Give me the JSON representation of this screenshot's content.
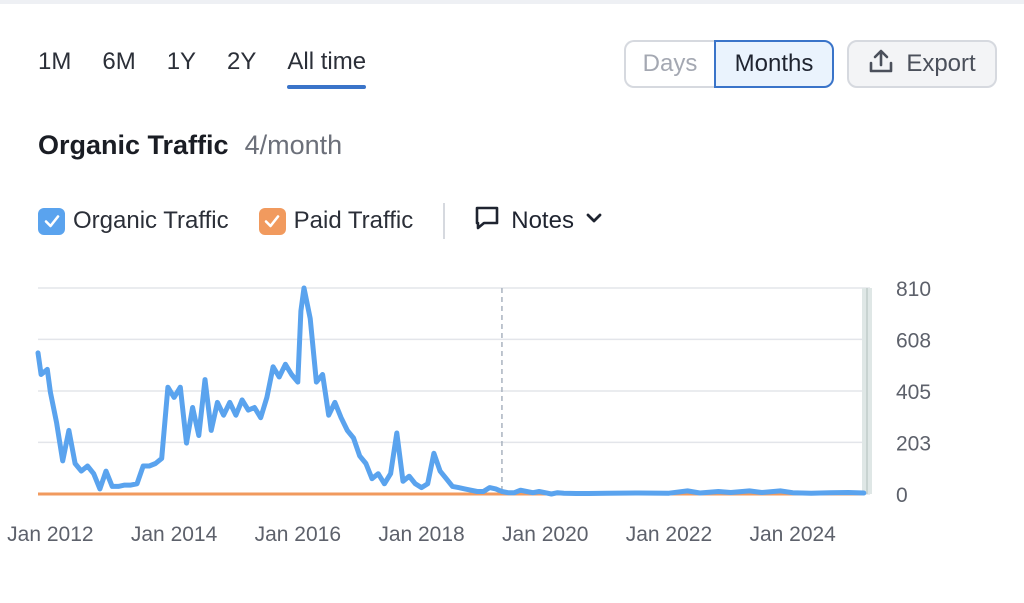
{
  "range_tabs": [
    {
      "label": "1M",
      "active": false
    },
    {
      "label": "6M",
      "active": false
    },
    {
      "label": "1Y",
      "active": false
    },
    {
      "label": "2Y",
      "active": false
    },
    {
      "label": "All time",
      "active": true
    }
  ],
  "granularity": {
    "days_label": "Days",
    "months_label": "Months",
    "selected": "Months"
  },
  "export_label": "Export",
  "title": "Organic Traffic",
  "subtitle": "4/month",
  "legend": [
    {
      "label": "Organic Traffic",
      "color": "#5aa3ee",
      "checked": true
    },
    {
      "label": "Paid Traffic",
      "color": "#f19a5e",
      "checked": true
    }
  ],
  "notes_label": "Notes",
  "icons": {
    "export": "upload-icon",
    "notes": "speech-bubble-icon",
    "dropdown": "chevron-down-icon",
    "check": "check-icon"
  },
  "colors": {
    "accent": "#3a74c9",
    "organic": "#5aa3ee",
    "paid": "#f19a5e"
  },
  "chart_data": {
    "type": "line",
    "xlim": [
      2011.8,
      2025.25
    ],
    "ylim": [
      0,
      810
    ],
    "y_ticks": [
      {
        "value": 0,
        "label": "0"
      },
      {
        "value": 203,
        "label": "203"
      },
      {
        "value": 405,
        "label": "405"
      },
      {
        "value": 608,
        "label": "608"
      },
      {
        "value": 810,
        "label": "810"
      }
    ],
    "x_ticks": [
      {
        "value": 2012,
        "label": "Jan 2012"
      },
      {
        "value": 2014,
        "label": "Jan 2014"
      },
      {
        "value": 2016,
        "label": "Jan 2016"
      },
      {
        "value": 2018,
        "label": "Jan 2018"
      },
      {
        "value": 2020,
        "label": "Jan 2020"
      },
      {
        "value": 2022,
        "label": "Jan 2022"
      },
      {
        "value": 2024,
        "label": "Jan 2024"
      }
    ],
    "marker_x": 2019.3,
    "grid": true,
    "series": [
      {
        "name": "Organic Traffic",
        "color": "#5aa3ee",
        "x": [
          2011.8,
          2011.85,
          2011.95,
          2012.0,
          2012.1,
          2012.2,
          2012.3,
          2012.4,
          2012.5,
          2012.6,
          2012.7,
          2012.8,
          2012.9,
          2013.0,
          2013.1,
          2013.2,
          2013.3,
          2013.4,
          2013.5,
          2013.6,
          2013.7,
          2013.8,
          2013.9,
          2014.0,
          2014.1,
          2014.2,
          2014.3,
          2014.4,
          2014.5,
          2014.6,
          2014.7,
          2014.8,
          2014.9,
          2015.0,
          2015.1,
          2015.2,
          2015.3,
          2015.4,
          2015.5,
          2015.6,
          2015.7,
          2015.8,
          2015.9,
          2016.0,
          2016.05,
          2016.1,
          2016.2,
          2016.3,
          2016.4,
          2016.5,
          2016.6,
          2016.7,
          2016.8,
          2016.9,
          2017.0,
          2017.1,
          2017.2,
          2017.3,
          2017.4,
          2017.5,
          2017.6,
          2017.7,
          2017.8,
          2017.9,
          2018.0,
          2018.1,
          2018.2,
          2018.3,
          2018.4,
          2018.5,
          2018.6,
          2018.7,
          2018.8,
          2018.9,
          2019.0,
          2019.1,
          2019.2,
          2019.3,
          2019.4,
          2019.5,
          2019.6,
          2019.7,
          2019.8,
          2019.9,
          2020.0,
          2020.1,
          2020.2,
          2020.3,
          2020.5,
          2020.7,
          2021.0,
          2021.5,
          2022.0,
          2022.3,
          2022.5,
          2022.8,
          2023.0,
          2023.3,
          2023.5,
          2023.8,
          2024.0,
          2024.3,
          2024.6,
          2024.9,
          2025.15
        ],
        "y": [
          555,
          470,
          490,
          400,
          280,
          130,
          250,
          120,
          90,
          110,
          80,
          20,
          90,
          30,
          30,
          35,
          35,
          40,
          110,
          110,
          120,
          140,
          420,
          380,
          420,
          200,
          340,
          230,
          450,
          250,
          360,
          310,
          360,
          310,
          370,
          330,
          340,
          300,
          380,
          500,
          460,
          510,
          470,
          440,
          720,
          810,
          690,
          440,
          470,
          310,
          360,
          300,
          250,
          220,
          150,
          120,
          60,
          80,
          40,
          80,
          240,
          50,
          70,
          40,
          25,
          40,
          160,
          90,
          60,
          30,
          25,
          20,
          15,
          10,
          10,
          25,
          20,
          10,
          5,
          5,
          15,
          10,
          5,
          10,
          5,
          0,
          5,
          3,
          2,
          2,
          3,
          4,
          3,
          12,
          4,
          10,
          6,
          12,
          6,
          12,
          5,
          3,
          5,
          6,
          4
        ]
      },
      {
        "name": "Paid Traffic",
        "color": "#f19a5e",
        "x": [
          2011.8,
          2025.15
        ],
        "y": [
          0,
          0
        ]
      }
    ]
  }
}
